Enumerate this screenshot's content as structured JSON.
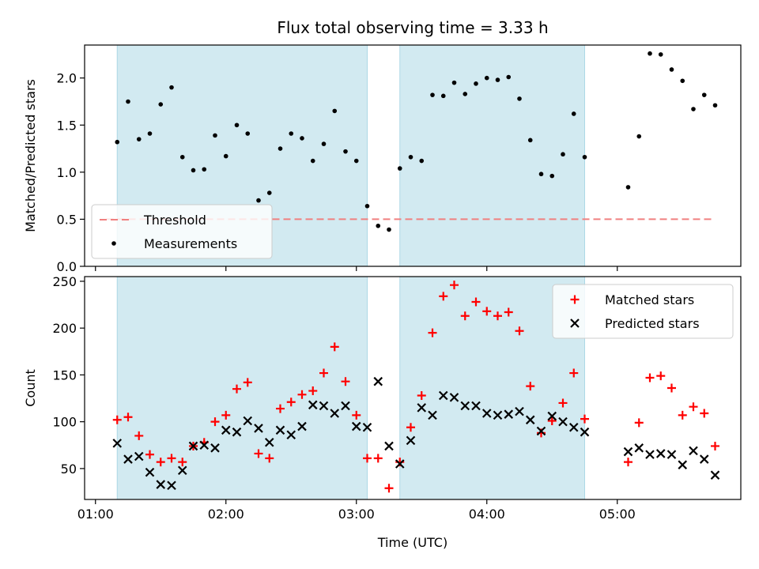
{
  "chart_data": {
    "type": "scatter",
    "title": "Flux total observing time = 3.33 h",
    "xlabel": "Time (UTC)",
    "x_ticks": [
      "01:00",
      "02:00",
      "03:00",
      "04:00",
      "05:00"
    ],
    "shaded_intervals": [
      [
        "01:10",
        "03:05"
      ],
      [
        "03:20",
        "04:45"
      ]
    ],
    "shade_color": "#add8e6",
    "panels": [
      {
        "ylabel": "Matched/Predicted stars",
        "ylim": [
          0,
          2.35
        ],
        "y_ticks": [
          "0.0",
          "0.5",
          "1.0",
          "1.5",
          "2.0"
        ],
        "legend_position": "lower-left",
        "threshold": {
          "name": "Threshold",
          "value": 0.5,
          "x_range": [
            "01:05",
            "05:45"
          ],
          "color": "#f08080"
        },
        "series": [
          {
            "name": "Measurements",
            "marker": "dot",
            "color": "#000000",
            "points": [
              [
                "01:10",
                1.32
              ],
              [
                "01:15",
                1.75
              ],
              [
                "01:20",
                1.35
              ],
              [
                "01:25",
                1.41
              ],
              [
                "01:30",
                1.72
              ],
              [
                "01:35",
                1.9
              ],
              [
                "01:40",
                1.16
              ],
              [
                "01:45",
                1.02
              ],
              [
                "01:50",
                1.03
              ],
              [
                "01:55",
                1.39
              ],
              [
                "02:00",
                1.17
              ],
              [
                "02:05",
                1.5
              ],
              [
                "02:10",
                1.41
              ],
              [
                "02:15",
                0.7
              ],
              [
                "02:20",
                0.78
              ],
              [
                "02:25",
                1.25
              ],
              [
                "02:30",
                1.41
              ],
              [
                "02:35",
                1.36
              ],
              [
                "02:40",
                1.12
              ],
              [
                "02:45",
                1.3
              ],
              [
                "02:50",
                1.65
              ],
              [
                "02:55",
                1.22
              ],
              [
                "03:00",
                1.12
              ],
              [
                "03:05",
                0.64
              ],
              [
                "03:10",
                0.43
              ],
              [
                "03:15",
                0.39
              ],
              [
                "03:20",
                1.04
              ],
              [
                "03:25",
                1.16
              ],
              [
                "03:30",
                1.12
              ],
              [
                "03:35",
                1.82
              ],
              [
                "03:40",
                1.81
              ],
              [
                "03:45",
                1.95
              ],
              [
                "03:50",
                1.83
              ],
              [
                "03:55",
                1.94
              ],
              [
                "04:00",
                2.0
              ],
              [
                "04:05",
                1.98
              ],
              [
                "04:10",
                2.01
              ],
              [
                "04:15",
                1.78
              ],
              [
                "04:20",
                1.34
              ],
              [
                "04:25",
                0.98
              ],
              [
                "04:30",
                0.96
              ],
              [
                "04:35",
                1.19
              ],
              [
                "04:40",
                1.62
              ],
              [
                "04:45",
                1.16
              ],
              [
                "05:05",
                0.84
              ],
              [
                "05:10",
                1.38
              ],
              [
                "05:15",
                2.26
              ],
              [
                "05:20",
                2.25
              ],
              [
                "05:25",
                2.09
              ],
              [
                "05:30",
                1.97
              ],
              [
                "05:35",
                1.67
              ],
              [
                "05:40",
                1.82
              ],
              [
                "05:45",
                1.71
              ]
            ]
          }
        ]
      },
      {
        "ylabel": "Count",
        "ylim": [
          17,
          255
        ],
        "y_ticks": [
          "50",
          "100",
          "150",
          "200",
          "250"
        ],
        "legend_position": "upper-right",
        "series": [
          {
            "name": "Matched stars",
            "marker": "plus",
            "color": "#ff0000",
            "points": [
              [
                "01:10",
                102
              ],
              [
                "01:15",
                105
              ],
              [
                "01:20",
                85
              ],
              [
                "01:25",
                65
              ],
              [
                "01:30",
                57
              ],
              [
                "01:35",
                61
              ],
              [
                "01:40",
                57
              ],
              [
                "01:45",
                74
              ],
              [
                "01:50",
                78
              ],
              [
                "01:55",
                100
              ],
              [
                "02:00",
                107
              ],
              [
                "02:05",
                135
              ],
              [
                "02:10",
                142
              ],
              [
                "02:15",
                66
              ],
              [
                "02:20",
                61
              ],
              [
                "02:25",
                114
              ],
              [
                "02:30",
                121
              ],
              [
                "02:35",
                129
              ],
              [
                "02:40",
                133
              ],
              [
                "02:45",
                152
              ],
              [
                "02:50",
                180
              ],
              [
                "02:55",
                143
              ],
              [
                "03:00",
                107
              ],
              [
                "03:05",
                61
              ],
              [
                "03:10",
                61
              ],
              [
                "03:15",
                29
              ],
              [
                "03:20",
                57
              ],
              [
                "03:25",
                94
              ],
              [
                "03:30",
                128
              ],
              [
                "03:35",
                195
              ],
              [
                "03:40",
                234
              ],
              [
                "03:45",
                246
              ],
              [
                "03:50",
                213
              ],
              [
                "03:55",
                228
              ],
              [
                "04:00",
                218
              ],
              [
                "04:05",
                213
              ],
              [
                "04:10",
                217
              ],
              [
                "04:15",
                197
              ],
              [
                "04:20",
                138
              ],
              [
                "04:25",
                88
              ],
              [
                "04:30",
                101
              ],
              [
                "04:35",
                120
              ],
              [
                "04:40",
                152
              ],
              [
                "04:45",
                103
              ],
              [
                "05:05",
                57
              ],
              [
                "05:10",
                99
              ],
              [
                "05:15",
                147
              ],
              [
                "05:20",
                149
              ],
              [
                "05:25",
                136
              ],
              [
                "05:30",
                107
              ],
              [
                "05:35",
                116
              ],
              [
                "05:40",
                109
              ],
              [
                "05:45",
                74
              ]
            ]
          },
          {
            "name": "Predicted stars",
            "marker": "cross",
            "color": "#000000",
            "points": [
              [
                "01:10",
                77
              ],
              [
                "01:15",
                60
              ],
              [
                "01:20",
                63
              ],
              [
                "01:25",
                46
              ],
              [
                "01:30",
                33
              ],
              [
                "01:35",
                32
              ],
              [
                "01:40",
                48
              ],
              [
                "01:45",
                74
              ],
              [
                "01:50",
                75
              ],
              [
                "01:55",
                72
              ],
              [
                "02:00",
                91
              ],
              [
                "02:05",
                89
              ],
              [
                "02:10",
                101
              ],
              [
                "02:15",
                93
              ],
              [
                "02:20",
                78
              ],
              [
                "02:25",
                91
              ],
              [
                "02:30",
                86
              ],
              [
                "02:35",
                95
              ],
              [
                "02:40",
                118
              ],
              [
                "02:45",
                117
              ],
              [
                "02:50",
                109
              ],
              [
                "02:55",
                117
              ],
              [
                "03:00",
                95
              ],
              [
                "03:05",
                94
              ],
              [
                "03:10",
                143
              ],
              [
                "03:15",
                74
              ],
              [
                "03:20",
                55
              ],
              [
                "03:25",
                80
              ],
              [
                "03:30",
                115
              ],
              [
                "03:35",
                107
              ],
              [
                "03:40",
                128
              ],
              [
                "03:45",
                126
              ],
              [
                "03:50",
                117
              ],
              [
                "03:55",
                117
              ],
              [
                "04:00",
                109
              ],
              [
                "04:05",
                107
              ],
              [
                "04:10",
                108
              ],
              [
                "04:15",
                111
              ],
              [
                "04:20",
                102
              ],
              [
                "04:25",
                90
              ],
              [
                "04:30",
                106
              ],
              [
                "04:35",
                100
              ],
              [
                "04:40",
                94
              ],
              [
                "04:45",
                89
              ],
              [
                "05:05",
                68
              ],
              [
                "05:10",
                72
              ],
              [
                "05:15",
                65
              ],
              [
                "05:20",
                66
              ],
              [
                "05:25",
                65
              ],
              [
                "05:30",
                54
              ],
              [
                "05:35",
                69
              ],
              [
                "05:40",
                60
              ],
              [
                "05:45",
                43
              ]
            ]
          }
        ]
      }
    ]
  }
}
